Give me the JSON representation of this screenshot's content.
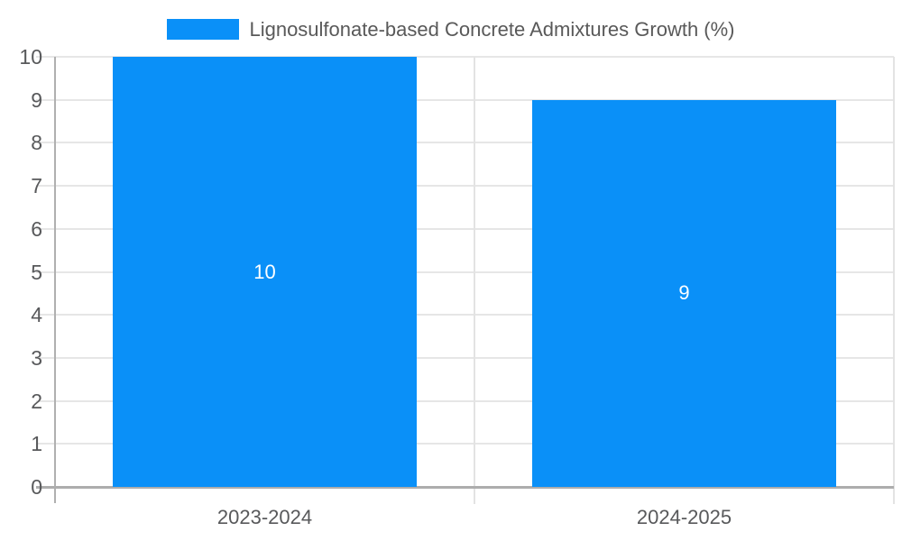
{
  "chart_data": {
    "type": "bar",
    "title": "Lignosulfonate-based Concrete Admixtures Growth (%)",
    "categories": [
      "2023-2024",
      "2024-2025"
    ],
    "values": [
      10,
      9
    ],
    "bar_value_labels": [
      "10",
      "9"
    ],
    "xlabel": "",
    "ylabel": "",
    "ylim": [
      0,
      10
    ],
    "yticks": [
      0,
      1,
      2,
      3,
      4,
      5,
      6,
      7,
      8,
      9,
      10
    ],
    "grid": true,
    "legend_position": "top",
    "legend_entries": [
      "Lignosulfonate-based Concrete Admixtures Growth (%)"
    ]
  },
  "colors": {
    "bar": "#0A90F8",
    "bar_value_text": "#ffffff",
    "gridline": "#e6e6e6",
    "separator": "#e3e3e3",
    "axis": "#b0b0b0",
    "baseline": "#adadad",
    "tick_text": "#58595b",
    "legend_text": "#595959",
    "background": "#ffffff"
  }
}
